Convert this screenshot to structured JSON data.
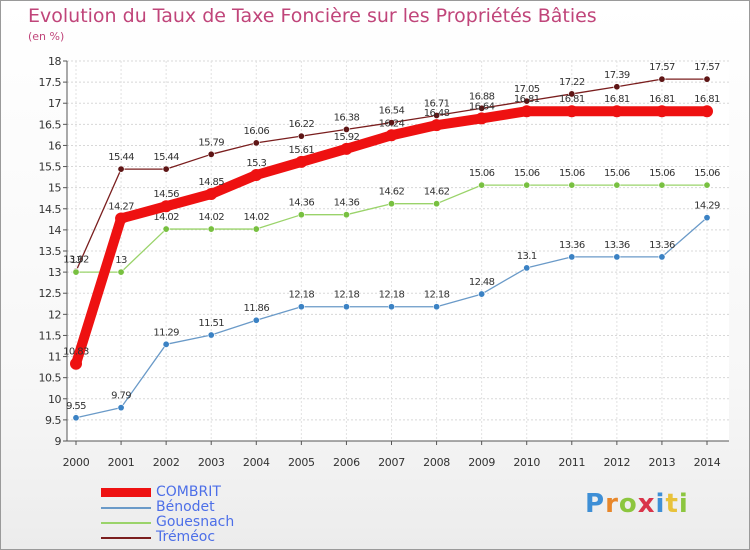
{
  "title": "Evolution du Taux de Taxe Foncière sur les Propriétés Bâties",
  "unit_label": "(en %)",
  "logo": {
    "letters": [
      {
        "char": "P",
        "color": "#3e8fd6"
      },
      {
        "char": "r",
        "color": "#e8872a"
      },
      {
        "char": "o",
        "color": "#8cc63f"
      },
      {
        "char": "x",
        "color": "#d9344a"
      },
      {
        "char": "i",
        "color": "#3e8fd6"
      },
      {
        "char": "t",
        "color": "#e8c23a"
      },
      {
        "char": "i",
        "color": "#8cc63f"
      }
    ]
  },
  "chart_data": {
    "type": "line",
    "title": "Evolution du Taux de Taxe Foncière sur les Propriétés Bâties",
    "ylabel": "(en %)",
    "xlabel": "",
    "ylim": [
      9,
      18
    ],
    "yticks": [
      "9",
      "9.5",
      "10",
      "10.5",
      "11",
      "11.5",
      "12",
      "12.5",
      "13",
      "13.5",
      "14",
      "14.5",
      "15",
      "15.5",
      "16",
      "16.5",
      "17",
      "17.5",
      "18"
    ],
    "categories": [
      "2000",
      "2001",
      "2002",
      "2003",
      "2004",
      "2005",
      "2006",
      "2007",
      "2008",
      "2009",
      "2010",
      "2011",
      "2012",
      "2013",
      "2014"
    ],
    "grid": true,
    "series": [
      {
        "name": "Tréméoc",
        "color": "#7a1e1e",
        "marker": "#5e1515",
        "values": [
          13.02,
          15.44,
          15.44,
          15.79,
          16.06,
          16.22,
          16.38,
          16.54,
          16.71,
          16.88,
          17.05,
          17.22,
          17.39,
          17.57,
          17.57
        ],
        "labels": [
          "13.02",
          "15.44",
          "15.44",
          "15.79",
          "16.06",
          "16.22",
          "16.38",
          "16.54",
          "16.71",
          "16.88",
          "17.05",
          "17.22",
          "17.39",
          "17.57",
          "17.57"
        ]
      },
      {
        "name": "Gouesnach",
        "color": "#9ad36a",
        "marker": "#78c040",
        "values": [
          13,
          13,
          14.02,
          14.02,
          14.02,
          14.36,
          14.36,
          14.62,
          14.62,
          15.06,
          15.06,
          15.06,
          15.06,
          15.06,
          15.06
        ],
        "labels": [
          "13",
          "13",
          "14.02",
          "14.02",
          "14.02",
          "14.36",
          "14.36",
          "14.62",
          "14.62",
          "15.06",
          "15.06",
          "15.06",
          "15.06",
          "15.06",
          "15.06"
        ]
      },
      {
        "name": "Bénodet",
        "color": "#6a9ac8",
        "marker": "#3b82c4",
        "values": [
          9.55,
          9.79,
          11.29,
          11.51,
          11.86,
          12.18,
          12.18,
          12.18,
          12.18,
          12.48,
          13.1,
          13.36,
          13.36,
          13.36,
          14.29
        ],
        "labels": [
          "9.55",
          "9.79",
          "11.29",
          "11.51",
          "11.86",
          "12.18",
          "12.18",
          "12.18",
          "12.18",
          "12.48",
          "13.1",
          "13.36",
          "13.36",
          "13.36",
          "14.29"
        ]
      },
      {
        "name": "COMBRIT",
        "color": "#ee1111",
        "marker": "#ee1111",
        "values": [
          10.83,
          14.27,
          14.56,
          14.85,
          15.3,
          15.61,
          15.92,
          16.24,
          16.48,
          16.64,
          16.81,
          16.81,
          16.81,
          16.81,
          16.81
        ],
        "labels": [
          "10.83",
          "14.27",
          "14.56",
          "14.85",
          "15.3",
          "15.61",
          "15.92",
          "16.24",
          "16.48",
          "16.64",
          "16.81",
          "16.81",
          "16.81",
          "16.81",
          "16.81"
        ]
      }
    ],
    "legend": {
      "position": "bottom-left",
      "items": [
        {
          "name": "COMBRIT",
          "color": "#ee1111",
          "thickness": "thick"
        },
        {
          "name": "Bénodet",
          "color": "#6a9ac8",
          "thickness": "thin"
        },
        {
          "name": "Gouesnach",
          "color": "#9ad36a",
          "thickness": "thin"
        },
        {
          "name": "Tréméoc",
          "color": "#7a1e1e",
          "thickness": "thin"
        }
      ]
    }
  }
}
